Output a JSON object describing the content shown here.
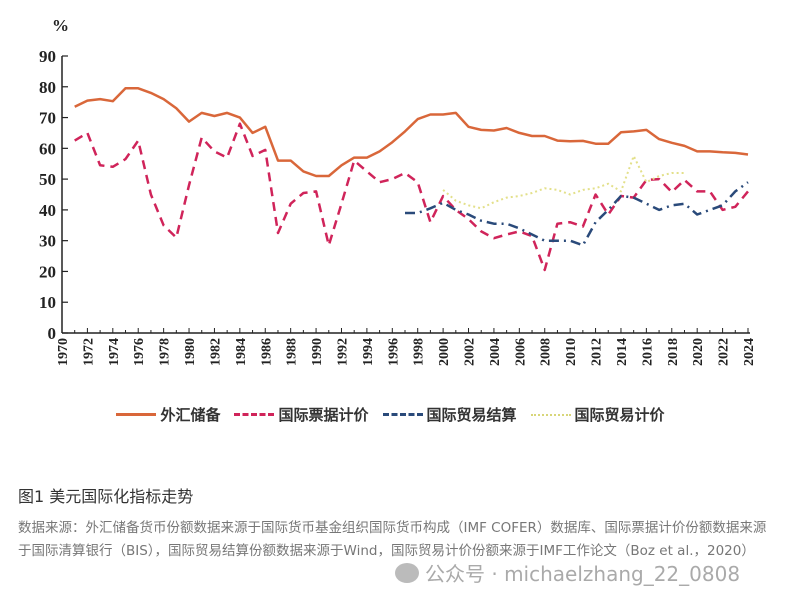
{
  "chart_data": {
    "type": "line",
    "ylabel": "%",
    "ylim": [
      0,
      90
    ],
    "yticks": [
      0,
      10,
      20,
      30,
      40,
      50,
      60,
      70,
      80,
      90
    ],
    "xlim": [
      1970,
      2024
    ],
    "xticks": [
      1970,
      1972,
      1974,
      1976,
      1978,
      1980,
      1982,
      1984,
      1986,
      1988,
      1990,
      1992,
      1994,
      1996,
      1998,
      2000,
      2002,
      2004,
      2006,
      2008,
      2010,
      2012,
      2014,
      2016,
      2018,
      2020,
      2022,
      2024
    ],
    "legend_position": "bottom",
    "series": [
      {
        "name": "外汇储备",
        "color": "#d9673a",
        "style": "solid",
        "x": [
          1971,
          1972,
          1973,
          1974,
          1975,
          1976,
          1977,
          1978,
          1979,
          1980,
          1981,
          1982,
          1983,
          1984,
          1985,
          1986,
          1987,
          1988,
          1989,
          1990,
          1991,
          1992,
          1993,
          1994,
          1995,
          1996,
          1997,
          1998,
          1999,
          2000,
          2001,
          2002,
          2003,
          2004,
          2005,
          2006,
          2007,
          2008,
          2009,
          2010,
          2011,
          2012,
          2013,
          2014,
          2015,
          2016,
          2017,
          2018,
          2019,
          2020,
          2021,
          2022,
          2023,
          2024
        ],
        "values": [
          73.5,
          75.5,
          76,
          75.3,
          79.5,
          79.5,
          78,
          76,
          73,
          68.7,
          71.5,
          70.5,
          71.5,
          70,
          65,
          67,
          56,
          56,
          52.5,
          51,
          51,
          54.5,
          57,
          57,
          59,
          62,
          65.5,
          69.5,
          71,
          71,
          71.5,
          67,
          66,
          65.8,
          66.6,
          65,
          64,
          64,
          62.5,
          62.3,
          62.4,
          61.5,
          61.5,
          65.2,
          65.5,
          66,
          63,
          61.8,
          60.8,
          59,
          59,
          58.7,
          58.5,
          58
        ]
      },
      {
        "name": "国际票据计价",
        "color": "#d0245a",
        "style": "dashed",
        "x": [
          1971,
          1972,
          1973,
          1974,
          1975,
          1976,
          1977,
          1978,
          1979,
          1980,
          1981,
          1982,
          1983,
          1984,
          1985,
          1986,
          1987,
          1988,
          1989,
          1990,
          1991,
          1992,
          1993,
          1994,
          1995,
          1996,
          1997,
          1998,
          1999,
          2000,
          2001,
          2002,
          2003,
          2004,
          2005,
          2006,
          2007,
          2008,
          2009,
          2010,
          2011,
          2012,
          2013,
          2014,
          2015,
          2016,
          2017,
          2018,
          2019,
          2020,
          2021,
          2022,
          2023,
          2024
        ],
        "values": [
          62.5,
          65,
          54.5,
          54,
          56.5,
          62.5,
          45,
          35,
          31,
          48,
          63.5,
          59,
          57,
          68,
          57.5,
          59.5,
          32.5,
          42,
          45.5,
          46,
          28.5,
          42,
          56,
          52.5,
          49,
          50,
          52,
          49,
          36,
          44.5,
          40,
          37,
          33,
          30.8,
          32,
          33,
          31.5,
          20.5,
          35.5,
          36,
          34.6,
          45,
          38.5,
          44.5,
          44,
          49.7,
          50,
          45.8,
          49.7,
          46,
          46,
          40,
          41,
          46
        ]
      },
      {
        "name": "国际贸易结算",
        "color": "#2a4a7a",
        "style": "dashdot",
        "x": [
          1997,
          1998,
          1999,
          2000,
          2001,
          2002,
          2003,
          2004,
          2005,
          2006,
          2007,
          2008,
          2009,
          2010,
          2011,
          2012,
          2013,
          2014,
          2015,
          2016,
          2017,
          2018,
          2019,
          2020,
          2021,
          2022,
          2023,
          2024
        ],
        "values": [
          39,
          39,
          40.5,
          42.3,
          40,
          38.5,
          36.5,
          35.5,
          35.5,
          34,
          32,
          30,
          30,
          30,
          28.5,
          36,
          40,
          44.5,
          44,
          42,
          40,
          41.5,
          42,
          38.5,
          40,
          41.5,
          46,
          49
        ]
      },
      {
        "name": "国际贸易计价",
        "color": "#e3e08a",
        "style": "dotted",
        "x": [
          2000,
          2001,
          2002,
          2003,
          2004,
          2005,
          2006,
          2007,
          2008,
          2009,
          2010,
          2011,
          2012,
          2013,
          2014,
          2015,
          2016,
          2017,
          2018,
          2019
        ],
        "values": [
          46.5,
          43,
          41.5,
          40.5,
          42.5,
          44,
          44.5,
          45.5,
          47,
          46.5,
          45,
          46.5,
          47,
          48.5,
          46,
          57.5,
          49,
          51,
          52,
          52
        ]
      }
    ]
  },
  "caption": "图1  美元国际化指标走势",
  "source": "数据来源：外汇储备货币份额数据来源于国际货币基金组织国际货币构成（IMF COFER）数据库、国际票据计价份额数据来源于国际清算银行（BIS），国际贸易结算份额数据来源于Wind，国际贸易计价份额来源于IMF工作论文（Boz et al.，2020）",
  "watermark": "公众号 · michaelzhang_22_0808"
}
